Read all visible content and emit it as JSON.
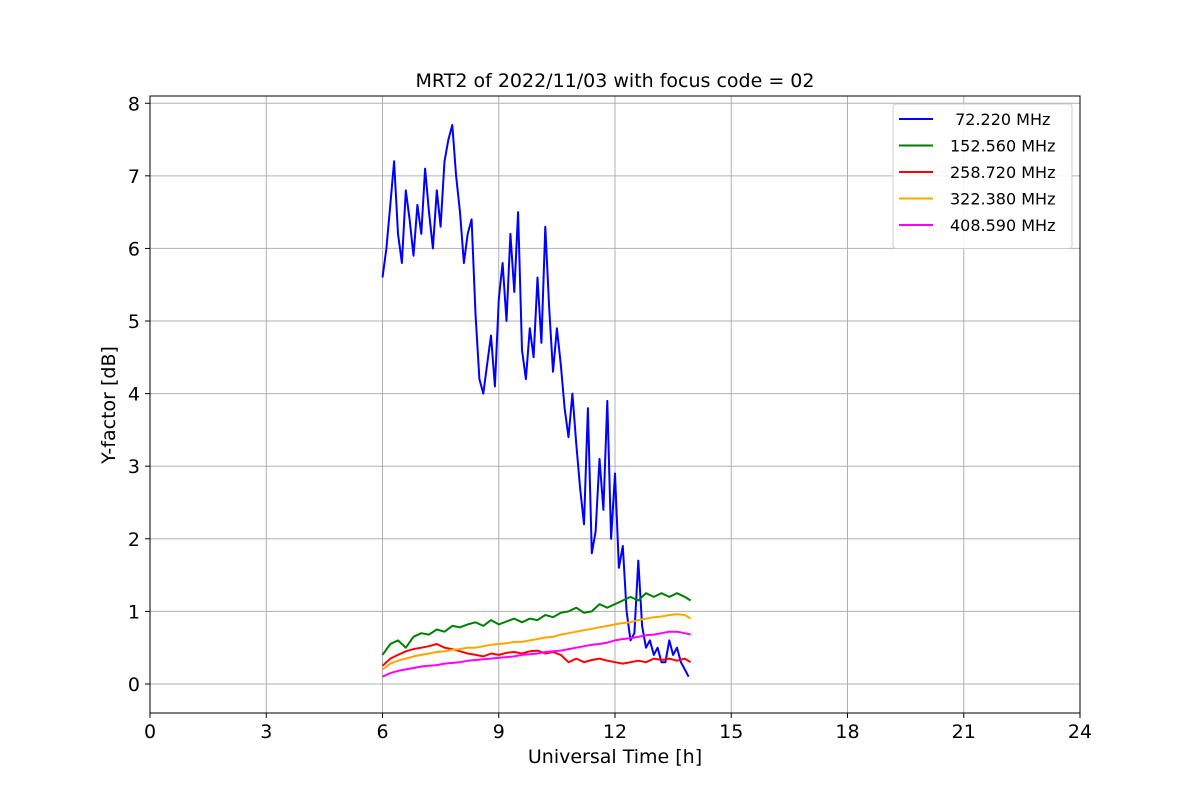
{
  "chart_data": {
    "type": "line",
    "title": "MRT2 of 2022/11/03 with focus code = 02",
    "xlabel": "Universal Time [h]",
    "ylabel": "Y-factor [dB]",
    "xlim": [
      0,
      24
    ],
    "ylim": [
      -0.4,
      8.1
    ],
    "xticks": [
      0,
      3,
      6,
      9,
      12,
      15,
      18,
      21,
      24
    ],
    "yticks": [
      0,
      1,
      2,
      3,
      4,
      5,
      6,
      7,
      8
    ],
    "grid": true,
    "legend_position": "top-right",
    "series": [
      {
        "name": " 72.220 MHz",
        "color": "#0000ff",
        "x": [
          6.0,
          6.1,
          6.2,
          6.3,
          6.4,
          6.5,
          6.6,
          6.7,
          6.8,
          6.9,
          7.0,
          7.1,
          7.2,
          7.3,
          7.4,
          7.5,
          7.6,
          7.7,
          7.8,
          7.9,
          8.0,
          8.1,
          8.2,
          8.3,
          8.4,
          8.5,
          8.6,
          8.7,
          8.8,
          8.9,
          9.0,
          9.1,
          9.2,
          9.3,
          9.4,
          9.5,
          9.6,
          9.7,
          9.8,
          9.9,
          10.0,
          10.1,
          10.2,
          10.3,
          10.4,
          10.5,
          10.6,
          10.7,
          10.8,
          10.9,
          11.0,
          11.1,
          11.2,
          11.3,
          11.4,
          11.5,
          11.6,
          11.7,
          11.8,
          11.9,
          12.0,
          12.1,
          12.2,
          12.3,
          12.4,
          12.5,
          12.6,
          12.7,
          12.8,
          12.9,
          13.0,
          13.1,
          13.2,
          13.3,
          13.4,
          13.5,
          13.6,
          13.7,
          13.8,
          13.9
        ],
        "y": [
          5.6,
          6.0,
          6.6,
          7.2,
          6.2,
          5.8,
          6.8,
          6.4,
          5.9,
          6.6,
          6.2,
          7.1,
          6.5,
          6.0,
          6.8,
          6.3,
          7.2,
          7.5,
          7.7,
          7.0,
          6.5,
          5.8,
          6.2,
          6.4,
          5.1,
          4.2,
          4.0,
          4.4,
          4.8,
          4.1,
          5.3,
          5.8,
          5.0,
          6.2,
          5.4,
          6.5,
          4.6,
          4.2,
          4.9,
          4.5,
          5.6,
          4.7,
          6.3,
          5.2,
          4.3,
          4.9,
          4.4,
          3.8,
          3.4,
          4.0,
          3.3,
          2.7,
          2.2,
          3.8,
          1.8,
          2.1,
          3.1,
          2.4,
          3.9,
          2.0,
          2.9,
          1.6,
          1.9,
          1.0,
          0.6,
          0.7,
          1.7,
          0.8,
          0.5,
          0.6,
          0.4,
          0.5,
          0.3,
          0.3,
          0.6,
          0.4,
          0.5,
          0.3,
          0.2,
          0.1
        ]
      },
      {
        "name": "152.560 MHz",
        "color": "#008000",
        "x": [
          6.0,
          6.2,
          6.4,
          6.6,
          6.8,
          7.0,
          7.2,
          7.4,
          7.6,
          7.8,
          8.0,
          8.2,
          8.4,
          8.6,
          8.8,
          9.0,
          9.2,
          9.4,
          9.6,
          9.8,
          10.0,
          10.2,
          10.4,
          10.6,
          10.8,
          11.0,
          11.2,
          11.4,
          11.6,
          11.8,
          12.0,
          12.2,
          12.4,
          12.6,
          12.8,
          13.0,
          13.2,
          13.4,
          13.6,
          13.8,
          13.95
        ],
        "y": [
          0.4,
          0.55,
          0.6,
          0.5,
          0.65,
          0.7,
          0.68,
          0.75,
          0.72,
          0.8,
          0.78,
          0.82,
          0.85,
          0.8,
          0.88,
          0.82,
          0.86,
          0.9,
          0.85,
          0.9,
          0.88,
          0.95,
          0.92,
          0.98,
          1.0,
          1.05,
          0.98,
          1.0,
          1.1,
          1.05,
          1.1,
          1.15,
          1.2,
          1.15,
          1.25,
          1.2,
          1.25,
          1.2,
          1.25,
          1.2,
          1.15
        ]
      },
      {
        "name": "258.720 MHz",
        "color": "#ff0000",
        "x": [
          6.0,
          6.2,
          6.4,
          6.6,
          6.8,
          7.0,
          7.2,
          7.4,
          7.6,
          7.8,
          8.0,
          8.2,
          8.4,
          8.6,
          8.8,
          9.0,
          9.2,
          9.4,
          9.6,
          9.8,
          10.0,
          10.2,
          10.4,
          10.6,
          10.8,
          11.0,
          11.2,
          11.4,
          11.6,
          11.8,
          12.0,
          12.2,
          12.4,
          12.6,
          12.8,
          13.0,
          13.2,
          13.4,
          13.6,
          13.8,
          13.95
        ],
        "y": [
          0.25,
          0.35,
          0.4,
          0.45,
          0.48,
          0.5,
          0.52,
          0.55,
          0.5,
          0.48,
          0.45,
          0.42,
          0.4,
          0.38,
          0.42,
          0.4,
          0.43,
          0.44,
          0.42,
          0.45,
          0.46,
          0.42,
          0.44,
          0.4,
          0.3,
          0.35,
          0.3,
          0.33,
          0.35,
          0.32,
          0.3,
          0.28,
          0.3,
          0.32,
          0.3,
          0.35,
          0.33,
          0.35,
          0.32,
          0.35,
          0.3
        ]
      },
      {
        "name": "322.380 MHz",
        "color": "#ffa500",
        "x": [
          6.0,
          6.2,
          6.4,
          6.6,
          6.8,
          7.0,
          7.2,
          7.4,
          7.6,
          7.8,
          8.0,
          8.2,
          8.4,
          8.6,
          8.8,
          9.0,
          9.2,
          9.4,
          9.6,
          9.8,
          10.0,
          10.2,
          10.4,
          10.6,
          10.8,
          11.0,
          11.2,
          11.4,
          11.6,
          11.8,
          12.0,
          12.2,
          12.4,
          12.6,
          12.8,
          13.0,
          13.2,
          13.4,
          13.6,
          13.8,
          13.95
        ],
        "y": [
          0.2,
          0.28,
          0.32,
          0.35,
          0.38,
          0.4,
          0.42,
          0.44,
          0.45,
          0.47,
          0.48,
          0.5,
          0.5,
          0.52,
          0.54,
          0.55,
          0.56,
          0.58,
          0.58,
          0.6,
          0.62,
          0.64,
          0.65,
          0.68,
          0.7,
          0.72,
          0.74,
          0.76,
          0.78,
          0.8,
          0.82,
          0.84,
          0.85,
          0.88,
          0.9,
          0.92,
          0.93,
          0.95,
          0.96,
          0.95,
          0.9
        ]
      },
      {
        "name": "408.590 MHz",
        "color": "#ff00ff",
        "x": [
          6.0,
          6.2,
          6.4,
          6.6,
          6.8,
          7.0,
          7.2,
          7.4,
          7.6,
          7.8,
          8.0,
          8.2,
          8.4,
          8.6,
          8.8,
          9.0,
          9.2,
          9.4,
          9.6,
          9.8,
          10.0,
          10.2,
          10.4,
          10.6,
          10.8,
          11.0,
          11.2,
          11.4,
          11.6,
          11.8,
          12.0,
          12.2,
          12.4,
          12.6,
          12.8,
          13.0,
          13.2,
          13.4,
          13.6,
          13.8,
          13.95
        ],
        "y": [
          0.1,
          0.15,
          0.18,
          0.2,
          0.22,
          0.24,
          0.25,
          0.26,
          0.28,
          0.29,
          0.3,
          0.32,
          0.33,
          0.34,
          0.35,
          0.36,
          0.37,
          0.38,
          0.4,
          0.41,
          0.42,
          0.44,
          0.45,
          0.46,
          0.48,
          0.5,
          0.52,
          0.54,
          0.55,
          0.57,
          0.6,
          0.62,
          0.63,
          0.65,
          0.67,
          0.68,
          0.7,
          0.72,
          0.72,
          0.7,
          0.68
        ]
      }
    ]
  }
}
